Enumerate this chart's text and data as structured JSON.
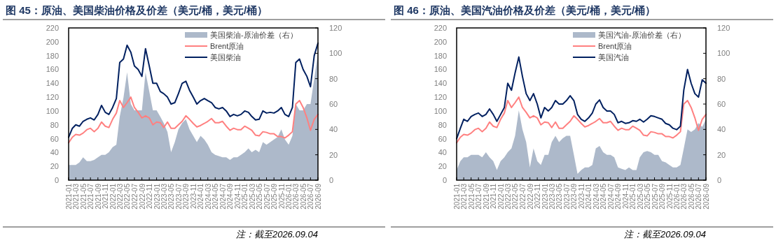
{
  "chart_data": [
    {
      "type": "line",
      "title": "图 45：原油、美国柴油价格及价差（美元/桶，美元/桶）",
      "annotations": [
        "注：截至2026.09.04"
      ],
      "legend": "top right",
      "x": [
        "2021-01",
        "2021-02",
        "2021-03",
        "2021-04",
        "2021-05",
        "2021-06",
        "2021-07",
        "2021-08",
        "2021-09",
        "2021-10",
        "2021-11",
        "2021-12",
        "2022-01",
        "2022-02",
        "2022-03",
        "2022-04",
        "2022-05",
        "2022-06",
        "2022-07",
        "2022-08",
        "2022-09",
        "2022-10",
        "2022-11",
        "2022-12",
        "2023-01",
        "2023-02",
        "2023-03",
        "2023-04",
        "2023-05",
        "2023-06",
        "2023-07",
        "2023-08",
        "2023-09",
        "2023-10",
        "2023-11",
        "2023-12",
        "2024-01",
        "2024-02",
        "2024-03",
        "2024-04",
        "2024-05",
        "2024-06",
        "2024-07",
        "2024-08",
        "2024-09",
        "2024-10",
        "2024-11",
        "2024-12",
        "2025-01",
        "2025-02",
        "2025-03",
        "2025-04",
        "2025-05",
        "2025-06",
        "2025-07",
        "2025-08",
        "2025-09",
        "2025-10",
        "2025-11",
        "2025-12",
        "2026-01",
        "2026-02",
        "2026-03",
        "2026-04",
        "2026-05",
        "2026-06",
        "2026-07",
        "2026-08",
        "2026-09"
      ],
      "xlim": [
        "2021-01",
        "2026-09"
      ],
      "xticks": [
        "2021-01",
        "2021-03",
        "2021-05",
        "2021-07",
        "2021-09",
        "2021-11",
        "2022-01",
        "2022-03",
        "2022-05",
        "2022-07",
        "2022-09",
        "2022-11",
        "2023-01",
        "2023-03",
        "2023-05",
        "2023-07",
        "2023-09",
        "2023-11",
        "2024-01",
        "2024-03",
        "2024-05",
        "2024-07",
        "2024-09",
        "2024-11",
        "2025-01",
        "2025-03",
        "2025-05",
        "2025-07",
        "2025-09",
        "2025-11",
        "2026-01",
        "2026-03",
        "2026-05",
        "2026-07",
        "2026-09"
      ],
      "ylim": [
        0,
        220
      ],
      "yticks": [
        0,
        20,
        40,
        60,
        80,
        100,
        120,
        140,
        160,
        180,
        200,
        220
      ],
      "y2lim": [
        0,
        120
      ],
      "y2ticks": [
        0,
        20,
        40,
        60,
        80,
        100,
        120
      ],
      "series": [
        {
          "name": "美国柴油-原油价差（右）",
          "type": "area",
          "axis": "y2",
          "color": "#adb9ca",
          "values": [
            12,
            12,
            12,
            14,
            18,
            15,
            15,
            16,
            18,
            20,
            20,
            22,
            26,
            28,
            50,
            65,
            85,
            60,
            55,
            55,
            55,
            85,
            70,
            55,
            55,
            50,
            45,
            38,
            22,
            30,
            40,
            45,
            48,
            40,
            35,
            30,
            35,
            32,
            28,
            22,
            20,
            19,
            18,
            18,
            16,
            18,
            18,
            20,
            22,
            25,
            22,
            24,
            22,
            30,
            28,
            30,
            32,
            34,
            40,
            32,
            28,
            35,
            60,
            55,
            55,
            60,
            60,
            80,
            100
          ]
        },
        {
          "name": "Brent原油",
          "type": "line",
          "color": "#ff8080",
          "values": [
            54,
            62,
            66,
            65,
            68,
            73,
            75,
            70,
            75,
            84,
            78,
            76,
            88,
            97,
            115,
            105,
            112,
            120,
            105,
            98,
            90,
            93,
            90,
            80,
            84,
            83,
            76,
            84,
            75,
            75,
            80,
            85,
            93,
            88,
            82,
            77,
            79,
            82,
            85,
            89,
            83,
            83,
            85,
            78,
            72,
            75,
            73,
            73,
            78,
            75,
            72,
            65,
            64,
            70,
            69,
            67,
            67,
            63,
            63,
            61,
            65,
            70,
            110,
            115,
            105,
            90,
            72,
            88,
            95
          ]
        },
        {
          "name": "美国柴油",
          "type": "line",
          "color": "#002060",
          "values": [
            62,
            75,
            80,
            78,
            85,
            88,
            90,
            87,
            95,
            108,
            98,
            95,
            105,
            118,
            170,
            175,
            195,
            185,
            165,
            160,
            150,
            190,
            165,
            140,
            140,
            128,
            125,
            120,
            110,
            112,
            125,
            140,
            143,
            130,
            120,
            110,
            115,
            118,
            115,
            112,
            105,
            103,
            105,
            100,
            92,
            95,
            93,
            95,
            100,
            98,
            92,
            87,
            88,
            100,
            97,
            98,
            97,
            100,
            105,
            95,
            92,
            105,
            170,
            175,
            160,
            150,
            135,
            180,
            198
          ]
        }
      ]
    },
    {
      "type": "line",
      "title": "图 46：原油、美国汽油价格及价差（美元/桶，美元/桶）",
      "annotations": [
        "注：截至2026.09.04"
      ],
      "legend": "top right",
      "x": [
        "2021-01",
        "2021-02",
        "2021-03",
        "2021-04",
        "2021-05",
        "2021-06",
        "2021-07",
        "2021-08",
        "2021-09",
        "2021-10",
        "2021-11",
        "2021-12",
        "2022-01",
        "2022-02",
        "2022-03",
        "2022-04",
        "2022-05",
        "2022-06",
        "2022-07",
        "2022-08",
        "2022-09",
        "2022-10",
        "2022-11",
        "2022-12",
        "2023-01",
        "2023-02",
        "2023-03",
        "2023-04",
        "2023-05",
        "2023-06",
        "2023-07",
        "2023-08",
        "2023-09",
        "2023-10",
        "2023-11",
        "2023-12",
        "2024-01",
        "2024-02",
        "2024-03",
        "2024-04",
        "2024-05",
        "2024-06",
        "2024-07",
        "2024-08",
        "2024-09",
        "2024-10",
        "2024-11",
        "2024-12",
        "2025-01",
        "2025-02",
        "2025-03",
        "2025-04",
        "2025-05",
        "2025-06",
        "2025-07",
        "2025-08",
        "2025-09",
        "2025-10",
        "2025-11",
        "2025-12",
        "2026-01",
        "2026-02",
        "2026-03",
        "2026-04",
        "2026-05",
        "2026-06",
        "2026-07",
        "2026-08",
        "2026-09"
      ],
      "xlim": [
        "2021-01",
        "2026-09"
      ],
      "xticks": [
        "2021-01",
        "2021-03",
        "2021-05",
        "2021-07",
        "2021-09",
        "2021-11",
        "2022-01",
        "2022-03",
        "2022-05",
        "2022-07",
        "2022-09",
        "2022-11",
        "2023-01",
        "2023-03",
        "2023-05",
        "2023-07",
        "2023-09",
        "2023-11",
        "2024-01",
        "2024-03",
        "2024-05",
        "2024-07",
        "2024-09",
        "2024-11",
        "2025-01",
        "2025-03",
        "2025-05",
        "2025-07",
        "2025-09",
        "2025-11",
        "2026-01",
        "2026-03",
        "2026-05",
        "2026-07",
        "2026-09"
      ],
      "ylim": [
        0,
        220
      ],
      "yticks": [
        0,
        20,
        40,
        60,
        80,
        100,
        120,
        140,
        160,
        180,
        200,
        220
      ],
      "y2lim": [
        0,
        120
      ],
      "y2ticks": [
        0,
        20,
        40,
        60,
        80,
        100,
        120
      ],
      "series": [
        {
          "name": "美国汽油-原油价差（右）",
          "type": "area",
          "axis": "y2",
          "color": "#adb9ca",
          "values": [
            8,
            15,
            18,
            18,
            20,
            20,
            20,
            18,
            22,
            18,
            15,
            8,
            15,
            18,
            22,
            25,
            35,
            55,
            40,
            30,
            10,
            25,
            15,
            12,
            20,
            20,
            30,
            35,
            30,
            33,
            35,
            35,
            20,
            5,
            8,
            10,
            10,
            12,
            25,
            27,
            22,
            20,
            20,
            18,
            10,
            9,
            8,
            10,
            8,
            8,
            18,
            22,
            23,
            22,
            20,
            20,
            15,
            14,
            12,
            10,
            10,
            12,
            25,
            40,
            38,
            40,
            45,
            42,
            48
          ]
        },
        {
          "name": "Brent原油",
          "type": "line",
          "color": "#ff8080",
          "values": [
            54,
            62,
            66,
            65,
            68,
            73,
            75,
            70,
            75,
            84,
            78,
            76,
            88,
            97,
            115,
            105,
            112,
            120,
            105,
            98,
            90,
            93,
            90,
            80,
            84,
            83,
            76,
            84,
            75,
            75,
            80,
            85,
            93,
            88,
            82,
            77,
            79,
            82,
            85,
            89,
            83,
            83,
            85,
            78,
            72,
            75,
            73,
            73,
            78,
            75,
            72,
            65,
            64,
            70,
            69,
            67,
            67,
            63,
            63,
            61,
            65,
            70,
            110,
            115,
            105,
            90,
            72,
            88,
            95
          ]
        },
        {
          "name": "美国汽油",
          "type": "line",
          "color": "#002060",
          "values": [
            60,
            75,
            88,
            85,
            92,
            95,
            97,
            92,
            95,
            103,
            95,
            85,
            95,
            105,
            140,
            130,
            155,
            178,
            150,
            125,
            115,
            125,
            110,
            90,
            105,
            100,
            105,
            115,
            110,
            110,
            115,
            122,
            115,
            95,
            88,
            85,
            90,
            97,
            110,
            116,
            105,
            100,
            100,
            95,
            83,
            85,
            82,
            83,
            86,
            85,
            88,
            84,
            88,
            93,
            92,
            90,
            88,
            82,
            80,
            75,
            73,
            78,
            130,
            160,
            140,
            125,
            120,
            145,
            140
          ]
        }
      ]
    }
  ]
}
